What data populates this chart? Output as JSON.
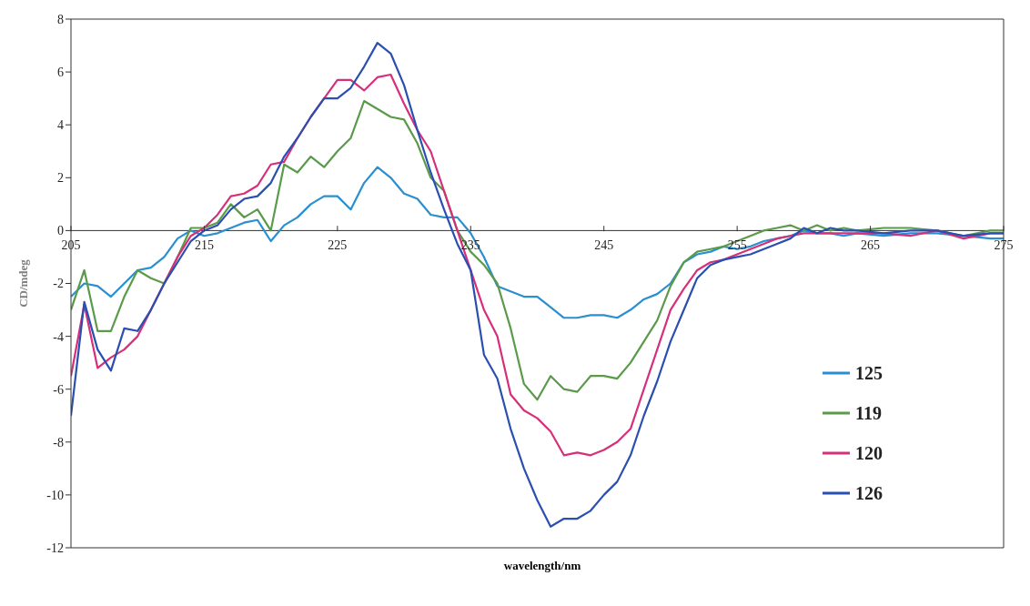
{
  "chart_data": {
    "type": "line",
    "xlabel": "wavelength/nm",
    "ylabel": "CD/mdeg",
    "x": [
      205,
      206,
      207,
      208,
      209,
      210,
      211,
      212,
      213,
      214,
      215,
      216,
      217,
      218,
      219,
      220,
      221,
      222,
      223,
      224,
      225,
      226,
      227,
      228,
      229,
      230,
      231,
      232,
      233,
      234,
      235,
      236,
      237,
      238,
      239,
      240,
      241,
      242,
      243,
      244,
      245,
      246,
      247,
      248,
      249,
      250,
      251,
      252,
      253,
      254,
      255,
      256,
      257,
      258,
      259,
      260,
      261,
      262,
      263,
      264,
      266,
      268,
      270,
      272,
      274,
      275
    ],
    "series": [
      {
        "name": "125",
        "color": "#2a8fd0",
        "values": [
          -2.5,
          -2.0,
          -2.1,
          -2.5,
          -2.0,
          -1.5,
          -1.4,
          -1.0,
          -0.3,
          0.0,
          -0.2,
          -0.1,
          0.1,
          0.3,
          0.4,
          -0.4,
          0.2,
          0.5,
          1.0,
          1.3,
          1.3,
          0.8,
          1.8,
          2.4,
          2.0,
          1.4,
          1.2,
          0.6,
          0.5,
          0.5,
          -0.1,
          -1.0,
          -2.1,
          -2.3,
          -2.5,
          -2.5,
          -2.9,
          -3.3,
          -3.3,
          -3.2,
          -3.2,
          -3.3,
          -3.0,
          -2.6,
          -2.4,
          -2.0,
          -1.2,
          -0.9,
          -0.8,
          -0.6,
          -0.7,
          -0.6,
          -0.4,
          -0.3,
          -0.2,
          0.0,
          -0.1,
          -0.1,
          -0.2,
          -0.1,
          -0.2,
          -0.1,
          -0.1,
          -0.2,
          -0.3,
          -0.3
        ]
      },
      {
        "name": "119",
        "color": "#5a9a4a",
        "values": [
          -3.0,
          -1.5,
          -3.8,
          -3.8,
          -2.5,
          -1.5,
          -1.8,
          -2.0,
          -1.0,
          0.1,
          0.1,
          0.3,
          1.0,
          0.5,
          0.8,
          0.0,
          2.5,
          2.2,
          2.8,
          2.4,
          3.0,
          3.5,
          4.9,
          4.6,
          4.3,
          4.2,
          3.3,
          2.0,
          1.5,
          0.0,
          -0.8,
          -1.3,
          -2.0,
          -3.7,
          -5.8,
          -6.4,
          -5.5,
          -6.0,
          -6.1,
          -5.5,
          -5.5,
          -5.6,
          -5.0,
          -4.2,
          -3.4,
          -2.1,
          -1.2,
          -0.8,
          -0.7,
          -0.6,
          -0.4,
          -0.2,
          0.0,
          0.1,
          0.2,
          0.0,
          0.2,
          0.0,
          0.1,
          0.0,
          0.1,
          0.1,
          0.0,
          -0.2,
          0.0,
          0.0
        ]
      },
      {
        "name": "120",
        "color": "#d6307a",
        "values": [
          -5.5,
          -2.8,
          -5.2,
          -4.8,
          -4.5,
          -4.0,
          -3.0,
          -2.0,
          -1.0,
          -0.2,
          0.1,
          0.6,
          1.3,
          1.4,
          1.7,
          2.5,
          2.6,
          3.5,
          4.3,
          5.0,
          5.7,
          5.7,
          5.3,
          5.8,
          5.9,
          4.8,
          3.8,
          3.0,
          1.5,
          0.0,
          -1.5,
          -3.0,
          -4.0,
          -6.2,
          -6.8,
          -7.1,
          -7.6,
          -8.5,
          -8.4,
          -8.5,
          -8.3,
          -8.0,
          -7.5,
          -6.0,
          -4.5,
          -3.0,
          -2.2,
          -1.5,
          -1.2,
          -1.1,
          -0.9,
          -0.7,
          -0.5,
          -0.3,
          -0.2,
          -0.1,
          -0.1,
          -0.1,
          -0.1,
          -0.1,
          -0.1,
          -0.2,
          0.0,
          -0.3,
          -0.1,
          -0.1
        ]
      },
      {
        "name": "126",
        "color": "#2a4fb0",
        "values": [
          -7.0,
          -2.7,
          -4.5,
          -5.3,
          -3.7,
          -3.8,
          -3.0,
          -2.0,
          -1.2,
          -0.4,
          0.0,
          0.2,
          0.8,
          1.2,
          1.3,
          1.8,
          2.8,
          3.5,
          4.3,
          5.0,
          5.0,
          5.4,
          6.2,
          7.1,
          6.7,
          5.5,
          3.8,
          2.2,
          0.8,
          -0.5,
          -1.5,
          -4.7,
          -5.6,
          -7.5,
          -9.0,
          -10.2,
          -11.2,
          -10.9,
          -10.9,
          -10.6,
          -10.0,
          -9.5,
          -8.5,
          -7.0,
          -5.7,
          -4.2,
          -3.0,
          -1.8,
          -1.3,
          -1.1,
          -1.0,
          -0.9,
          -0.7,
          -0.5,
          -0.3,
          0.1,
          -0.1,
          0.1,
          0.0,
          0.0,
          -0.1,
          0.0,
          0.0,
          -0.2,
          -0.1,
          -0.1
        ]
      }
    ],
    "xlim": [
      205,
      275
    ],
    "xticks": [
      205,
      215,
      225,
      235,
      245,
      255,
      265,
      275
    ],
    "ylim": [
      -12,
      8
    ],
    "yticks": [
      -12,
      -10,
      -8,
      -6,
      -4,
      -2,
      0,
      2,
      4,
      6,
      8
    ],
    "grid": false,
    "legend": "bottom right",
    "marker": "none",
    "line_style": "solid"
  }
}
